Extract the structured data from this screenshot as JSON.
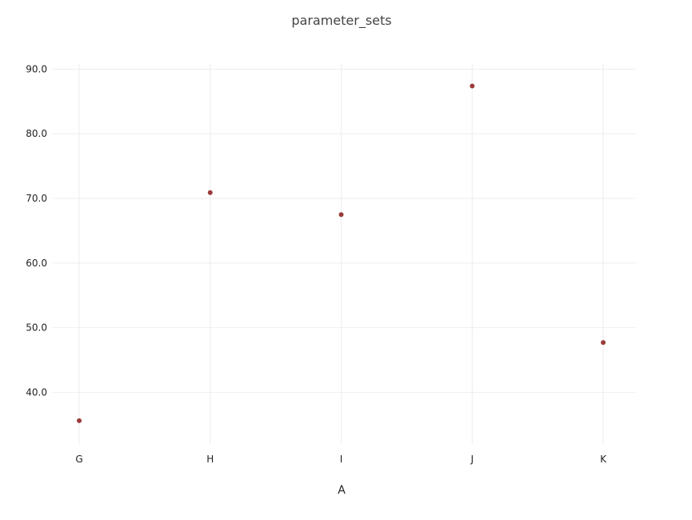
{
  "chart_data": {
    "type": "scatter",
    "title": "parameter_sets",
    "xlabel": "A",
    "ylabel": "",
    "categories": [
      "G",
      "H",
      "I",
      "J",
      "K"
    ],
    "values": [
      35.6,
      70.9,
      67.5,
      87.4,
      47.7
    ],
    "ylim": [
      32.0,
      90.8
    ],
    "yticks": [
      40.0,
      50.0,
      60.0,
      70.0,
      80.0,
      90.0
    ],
    "ytick_labels": [
      "40.0",
      "50.0",
      "60.0",
      "70.0",
      "80.0",
      "90.0"
    ],
    "marker_color": "#9b3b3b",
    "grid": true,
    "legend": "none"
  }
}
